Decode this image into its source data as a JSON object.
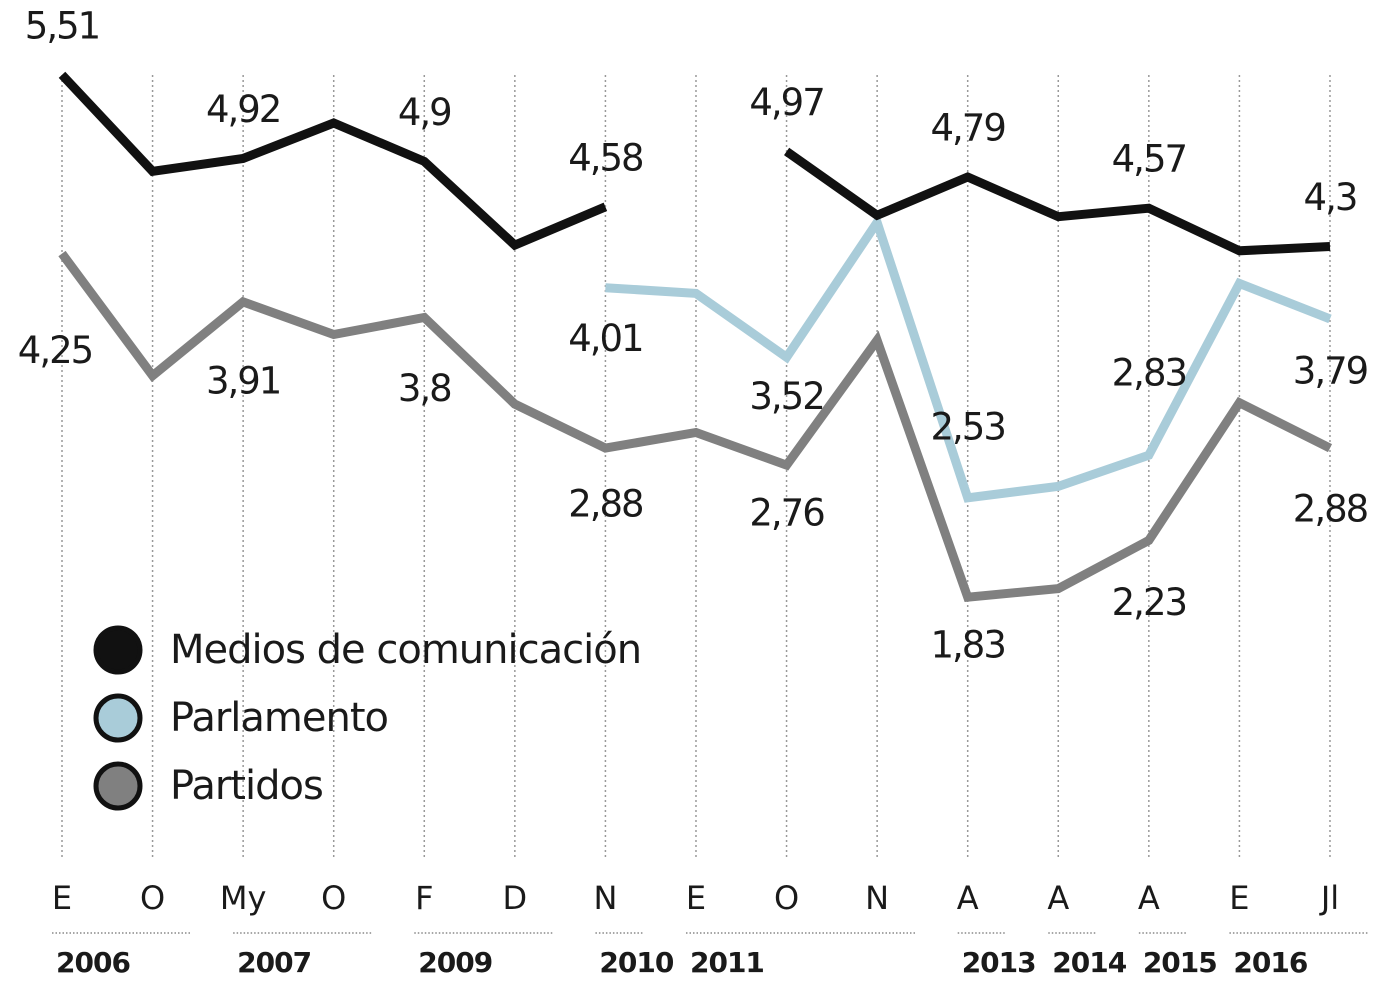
{
  "chart_data": {
    "type": "line",
    "categories": [
      "E",
      "O",
      "My",
      "O",
      "F",
      "D",
      "N",
      "E",
      "O",
      "N",
      "A",
      "A",
      "A",
      "E",
      "Jl"
    ],
    "years": [
      "2006",
      "2006",
      "2007",
      "2007",
      "2009",
      "2009",
      "2010",
      "2011",
      "2011",
      "2011",
      "2013",
      "2014",
      "2015",
      "2016",
      "2016"
    ],
    "ylim": [
      1.5,
      5.6
    ],
    "grid": true,
    "legend": "lower left",
    "series": [
      {
        "name": "Medios de comunicación",
        "color": "#111111",
        "values": [
          5.51,
          4.83,
          4.92,
          5.17,
          4.9,
          4.31,
          4.58,
          null,
          4.97,
          4.52,
          4.79,
          4.51,
          4.57,
          4.27,
          4.3
        ],
        "value_labels": [
          "5,51",
          null,
          "4,92",
          null,
          "4,9",
          null,
          "4,58",
          null,
          "4,97",
          null,
          "4,79",
          null,
          "4,57",
          null,
          "4,3"
        ]
      },
      {
        "name": "Parlamento",
        "color": "#a9ccd9",
        "values": [
          null,
          null,
          null,
          null,
          null,
          null,
          4.01,
          3.97,
          3.52,
          4.47,
          2.53,
          2.61,
          2.83,
          4.04,
          3.79
        ],
        "value_labels": [
          null,
          null,
          null,
          null,
          null,
          null,
          "4,01",
          null,
          "3,52",
          null,
          "2,53",
          null,
          "2,83",
          null,
          "3,79"
        ]
      },
      {
        "name": "Partidos",
        "color": "#808080",
        "values": [
          4.25,
          3.39,
          3.91,
          3.68,
          3.8,
          3.19,
          2.88,
          2.99,
          2.76,
          3.64,
          1.83,
          1.89,
          2.23,
          3.2,
          2.88
        ],
        "value_labels": [
          "4,25",
          null,
          "3,91",
          null,
          "3,8",
          null,
          "2,88",
          null,
          "2,76",
          null,
          "1,83",
          null,
          "2,23",
          null,
          "2,88"
        ]
      }
    ]
  }
}
